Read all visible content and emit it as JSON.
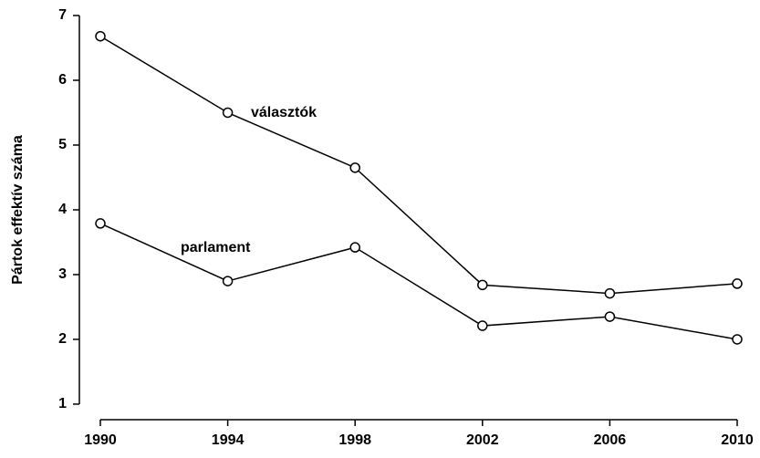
{
  "chart_data": {
    "type": "line",
    "y_label": "Pártok effektív száma",
    "x": [
      1990,
      1994,
      1998,
      2002,
      2006,
      2010
    ],
    "series": [
      {
        "name": "választók",
        "color": "#000000",
        "values": [
          6.68,
          5.5,
          4.65,
          2.84,
          2.71,
          2.86
        ]
      },
      {
        "name": "parlament",
        "color": "#000000",
        "values": [
          3.79,
          2.9,
          3.42,
          2.21,
          2.35,
          2.0
        ]
      }
    ],
    "xlim": [
      1990,
      2010
    ],
    "xticks": [
      1990,
      1994,
      1998,
      2002,
      2006,
      2010
    ],
    "ylim": [
      0.76,
      7
    ],
    "yticks": [
      1,
      2,
      3,
      4,
      5,
      6,
      7
    ],
    "grid": false,
    "markers": "open-circle"
  }
}
